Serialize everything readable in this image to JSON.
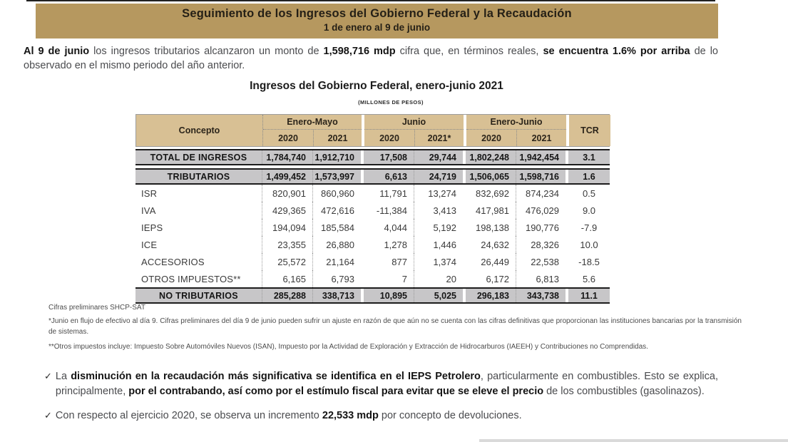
{
  "banner": {
    "title": "Seguimiento de los Ingresos del Gobierno Federal y la Recaudación",
    "subtitle": "1 de enero al 9 de junio"
  },
  "intro": [
    {
      "text": "Al 9 de junio",
      "bold": true
    },
    {
      "text": " los ingresos tributarios alcanzaron un monto de ",
      "bold": false
    },
    {
      "text": "1,598,716 mdp",
      "bold": true
    },
    {
      "text": " cifra que, en términos reales, ",
      "bold": false
    },
    {
      "text": "se encuentra 1.6% por arriba",
      "bold": true
    },
    {
      "text": " de lo observado en el mismo periodo del año anterior.",
      "bold": false
    }
  ],
  "table": {
    "title": "Ingresos del Gobierno Federal, enero-junio 2021",
    "units": "(MILLONES DE PESOS)",
    "concept_header": "Concepto",
    "tcr_header": "TCR",
    "groups": [
      {
        "label": "Enero-Mayo",
        "cols": [
          "2020",
          "2021"
        ]
      },
      {
        "label": "Junio",
        "cols": [
          "2020",
          "2021*"
        ]
      },
      {
        "label": "Enero-Junio",
        "cols": [
          "2020",
          "2021"
        ]
      }
    ],
    "rows": [
      {
        "concept": "TOTAL DE INGRESOS",
        "values": [
          "1,784,740",
          "1,912,710",
          "17,508",
          "29,744",
          "1,802,248",
          "1,942,454",
          "3.1"
        ],
        "style": "highlight"
      },
      {
        "concept": "TRIBUTARIOS",
        "values": [
          "1,499,452",
          "1,573,997",
          "6,613",
          "24,719",
          "1,506,065",
          "1,598,716",
          "1.6"
        ],
        "style": "highlight"
      },
      {
        "concept": "ISR",
        "values": [
          "820,901",
          "860,960",
          "11,791",
          "13,274",
          "832,692",
          "874,234",
          "0.5"
        ],
        "style": "normal"
      },
      {
        "concept": "IVA",
        "values": [
          "429,365",
          "472,616",
          "-11,384",
          "3,413",
          "417,981",
          "476,029",
          "9.0"
        ],
        "style": "normal"
      },
      {
        "concept": "IEPS",
        "values": [
          "194,094",
          "185,584",
          "4,044",
          "5,192",
          "198,138",
          "190,776",
          "-7.9"
        ],
        "style": "normal"
      },
      {
        "concept": "ICE",
        "values": [
          "23,355",
          "26,880",
          "1,278",
          "1,446",
          "24,632",
          "28,326",
          "10.0"
        ],
        "style": "normal"
      },
      {
        "concept": "ACCESORIOS",
        "values": [
          "25,572",
          "21,164",
          "877",
          "1,374",
          "26,449",
          "22,538",
          "-18.5"
        ],
        "style": "normal"
      },
      {
        "concept": "OTROS IMPUESTOS**",
        "values": [
          "6,165",
          "6,793",
          "7",
          "20",
          "6,172",
          "6,813",
          "5.6"
        ],
        "style": "normal"
      },
      {
        "concept": "NO TRIBUTARIOS",
        "values": [
          "285,288",
          "338,713",
          "10,895",
          "5,025",
          "296,183",
          "343,738",
          "11.1"
        ],
        "style": "highlight"
      }
    ]
  },
  "footnotes": [
    "Cifras preliminares SHCP-SAT",
    "*Junio en flujo de efectivo al día 9. Cifras preliminares del día 9 de junio pueden sufrir un ajuste en razón de que aún no se cuenta con las cifras definitivas que proporcionan las instituciones bancarias por la transmisión de sistemas.",
    "**Otros impuestos incluye: Impuesto Sobre Automóviles Nuevos (ISAN), Impuesto por la Actividad de Exploración y Extracción de Hidrocarburos (IAEEH) y Contribuciones no Comprendidas."
  ],
  "bullets": [
    {
      "marker": "✓",
      "segments": [
        {
          "text": "La ",
          "bold": false
        },
        {
          "text": "disminución en la recaudación más significativa se identifica en el IEPS Petrolero",
          "bold": true
        },
        {
          "text": ", particularmente en combustibles. Esto se explica, principalmente, ",
          "bold": false
        },
        {
          "text": "por el contrabando, así como por el estímulo fiscal para evitar que se eleve el precio",
          "bold": true
        },
        {
          "text": " de los combustibles (gasolinazos).",
          "bold": false
        }
      ]
    },
    {
      "marker": "✓",
      "segments": [
        {
          "text": "Con respecto al ejercicio 2020, se observa un incremento ",
          "bold": false
        },
        {
          "text": "22,533 mdp",
          "bold": true
        },
        {
          "text": " por concepto de devoluciones.",
          "bold": false
        }
      ]
    }
  ],
  "colors": {
    "banner_bg": "#b6985f",
    "header_bg": "#d8c094",
    "highlight_row_bg": "#c7c6c8"
  }
}
